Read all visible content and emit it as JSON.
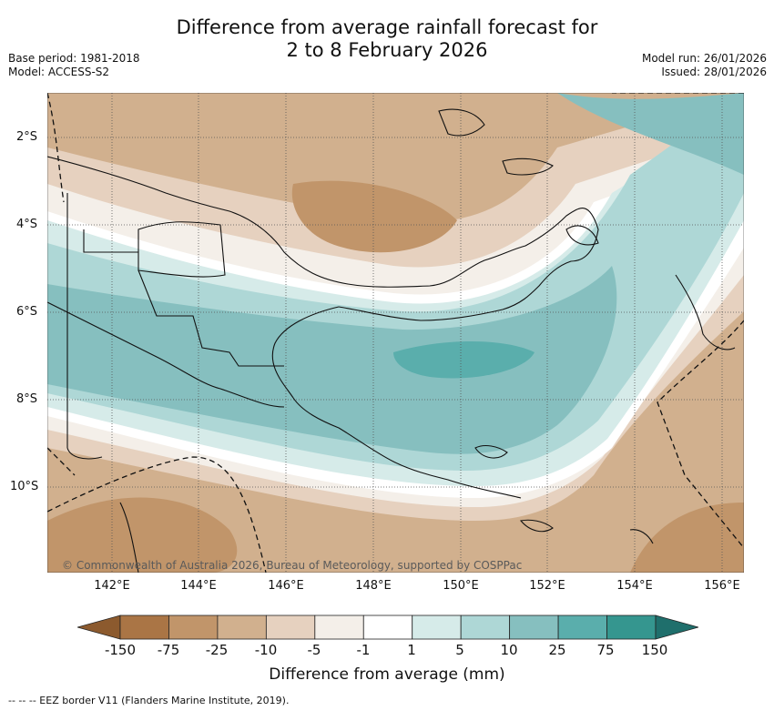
{
  "title": {
    "line1": "Difference from average rainfall forecast for",
    "line2": "2 to 8 February 2026"
  },
  "meta_left": {
    "base_period": "Base period: 1981-2018",
    "model": "Model: ACCESS-S2"
  },
  "meta_right": {
    "model_run": "Model run: 26/01/2026",
    "issued": "Issued: 28/01/2026"
  },
  "latitude_labels": [
    "2°S",
    "4°S",
    "6°S",
    "8°S",
    "10°S"
  ],
  "longitude_labels": [
    "142°E",
    "144°E",
    "146°E",
    "148°E",
    "150°E",
    "152°E",
    "154°E",
    "156°E"
  ],
  "copyright": "© Commonwealth of Australia 2026, Bureau of Meteorology, supported by COSPPac",
  "colorbar": {
    "ticks": [
      "-150",
      "-75",
      "-25",
      "-10",
      "-5",
      "-1",
      "1",
      "5",
      "10",
      "25",
      "75",
      "150"
    ],
    "colors": [
      "#8c5a2e",
      "#aa7545",
      "#c1956a",
      "#d1b08e",
      "#e6d1bf",
      "#f4efe9",
      "#ffffff",
      "#d6ebe9",
      "#aed7d6",
      "#86bfbf",
      "#5aaeac",
      "#35968f",
      "#1f6f6c"
    ],
    "label": "Difference from average (mm)"
  },
  "eez_note": "--  --  -- EEZ border V11 (Flanders Marine Institute, 2019)."
}
